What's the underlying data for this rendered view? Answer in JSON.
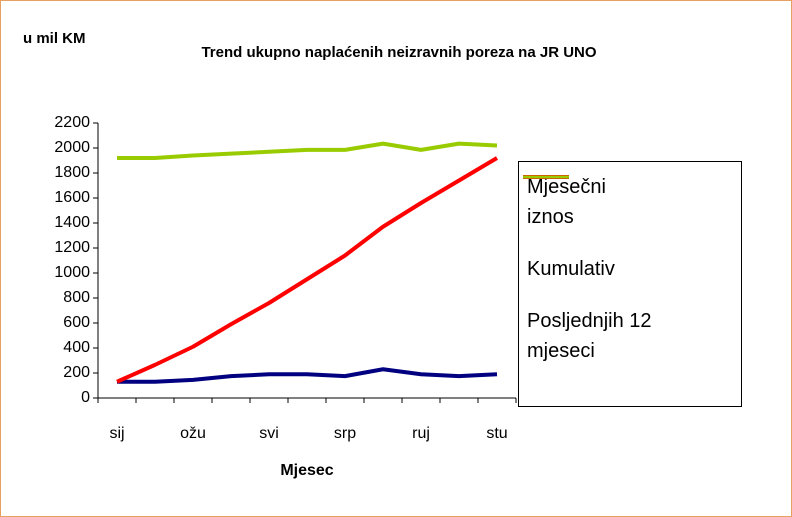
{
  "chart_data": {
    "type": "line",
    "title": "Trend ukupno naplaćenih neizravnih poreza na JR UNO",
    "y_unit": "u mil KM",
    "x_label": "Mjesec",
    "categories": [
      "sij",
      null,
      "ožu",
      null,
      "svi",
      null,
      "srp",
      null,
      "ruj",
      null,
      "stu"
    ],
    "series": [
      {
        "name": "Mjesečni iznos",
        "color": "#000080",
        "values": [
          130,
          130,
          145,
          175,
          190,
          190,
          175,
          230,
          190,
          175,
          190
        ]
      },
      {
        "name": "Kumulativ",
        "color": "#ff0000",
        "values": [
          130,
          265,
          410,
          590,
          760,
          950,
          1140,
          1370,
          1560,
          1740,
          1920
        ]
      },
      {
        "name": "Posljednjih 12 mjeseci",
        "color": "#99cc00",
        "values": [
          1920,
          1920,
          1940,
          1955,
          1970,
          1985,
          1985,
          2035,
          1985,
          2035,
          2020
        ]
      }
    ],
    "ylim": [
      0,
      2200
    ],
    "yticks": [
      0,
      200,
      400,
      600,
      800,
      1000,
      1200,
      1400,
      1600,
      1800,
      2000,
      2200
    ],
    "grid": false
  }
}
